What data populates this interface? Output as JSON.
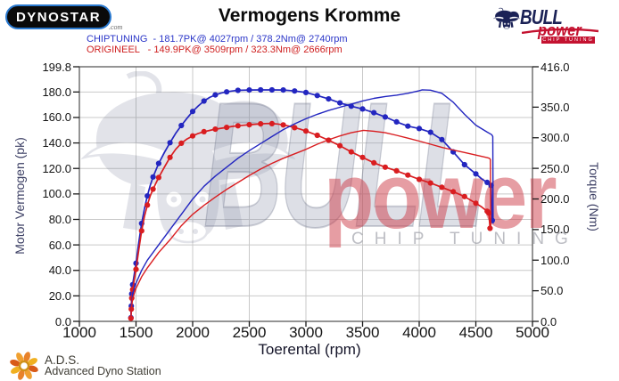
{
  "header": {
    "dynostar": {
      "text": "DYNOSTAR",
      "suffix": ".com"
    },
    "title": "Vermogens Kromme",
    "bullpower_logo": {
      "bull": "BULL",
      "power": "power",
      "chip": "CHIP TUNING"
    }
  },
  "legend": {
    "chiptuning": {
      "label": "CHIPTUNING  - 181.7PK@ 4027rpm / 378.2Nm@ 2740rpm",
      "color": "#2a35c8"
    },
    "origineel": {
      "label": "ORIGINEEL   - 149.9PK@ 3509rpm / 323.3Nm@ 2666rpm",
      "color": "#cf2020"
    }
  },
  "watermark": {
    "bull_text": "BULL",
    "power_text": "power",
    "chip_text": "CHIP TUNING"
  },
  "footer": {
    "ads_abbr": "A.D.S.",
    "ads_name": "Advanced Dyno Station"
  },
  "chart_data": {
    "type": "line",
    "title": "Vermogens Kromme",
    "xlabel": "Toerental (rpm)",
    "ylabel_left": "Motor Vermogen (pk)",
    "ylabel_right": "Torque (Nm)",
    "x_range": [
      1000,
      5000
    ],
    "y_left_range": [
      0,
      199.8
    ],
    "y_right_range": [
      0,
      416
    ],
    "grid": true,
    "legend_position": "top-left",
    "x_ticks": {
      "values": [
        1000,
        1500,
        2000,
        2500,
        3000,
        3500,
        4000,
        4500,
        5000
      ],
      "labels": [
        "1000",
        "1500",
        "2000",
        "2500",
        "3000",
        "3500",
        "4000",
        "4500",
        "5000"
      ]
    },
    "y_left_ticks": {
      "values": [
        0,
        20,
        40,
        60,
        80,
        100,
        120,
        140,
        160,
        180,
        199.8
      ],
      "labels": [
        "0.0",
        "20.0",
        "40.0",
        "60.0",
        "80.0",
        "100.0",
        "120.0",
        "140.0",
        "160.0",
        "180.0",
        "199.8"
      ]
    },
    "y_right_ticks": {
      "values": [
        0,
        50,
        100,
        150,
        200,
        250,
        300,
        350,
        416
      ],
      "labels": [
        "0.0",
        "50.0",
        "100.0",
        "150.0",
        "200.0",
        "250.0",
        "300.0",
        "350.0",
        "416.0"
      ]
    },
    "series": [
      {
        "name": "chiptuning-torque",
        "axis": "right",
        "color": "#2326c0",
        "markers": true,
        "peak_label": "378.2Nm@ 2740rpm",
        "points": [
          [
            1455,
            6
          ],
          [
            1458,
            25
          ],
          [
            1462,
            45
          ],
          [
            1470,
            60
          ],
          [
            1500,
            95
          ],
          [
            1525,
            130
          ],
          [
            1550,
            160
          ],
          [
            1575,
            185
          ],
          [
            1600,
            205
          ],
          [
            1625,
            222
          ],
          [
            1650,
            236
          ],
          [
            1700,
            258
          ],
          [
            1750,
            276
          ],
          [
            1800,
            292
          ],
          [
            1850,
            307
          ],
          [
            1900,
            320
          ],
          [
            1950,
            332
          ],
          [
            2000,
            343
          ],
          [
            2050,
            352
          ],
          [
            2100,
            360
          ],
          [
            2150,
            366
          ],
          [
            2200,
            370
          ],
          [
            2250,
            373
          ],
          [
            2300,
            375
          ],
          [
            2350,
            376.5
          ],
          [
            2400,
            377.5
          ],
          [
            2500,
            378
          ],
          [
            2600,
            378.2
          ],
          [
            2700,
            378.2
          ],
          [
            2800,
            378
          ],
          [
            2900,
            376.5
          ],
          [
            3000,
            374
          ],
          [
            3100,
            369
          ],
          [
            3200,
            363.5
          ],
          [
            3300,
            357
          ],
          [
            3400,
            351.5
          ],
          [
            3500,
            347
          ],
          [
            3600,
            341
          ],
          [
            3700,
            334
          ],
          [
            3800,
            326
          ],
          [
            3900,
            319
          ],
          [
            4000,
            315
          ],
          [
            4100,
            309
          ],
          [
            4200,
            297
          ],
          [
            4300,
            277
          ],
          [
            4400,
            256
          ],
          [
            4500,
            241
          ],
          [
            4550,
            233
          ],
          [
            4600,
            227
          ],
          [
            4635,
            222
          ],
          [
            4645,
            165
          ]
        ]
      },
      {
        "name": "origineel-torque",
        "axis": "right",
        "color": "#d91d20",
        "markers": true,
        "peak_label": "323.3Nm@ 2666rpm",
        "points": [
          [
            1455,
            5
          ],
          [
            1458,
            20
          ],
          [
            1462,
            38
          ],
          [
            1470,
            52
          ],
          [
            1500,
            85
          ],
          [
            1525,
            118
          ],
          [
            1550,
            148
          ],
          [
            1575,
            172
          ],
          [
            1600,
            190
          ],
          [
            1625,
            205
          ],
          [
            1650,
            216
          ],
          [
            1700,
            235
          ],
          [
            1750,
            252
          ],
          [
            1800,
            268
          ],
          [
            1850,
            281
          ],
          [
            1900,
            291
          ],
          [
            1950,
            298
          ],
          [
            2000,
            303
          ],
          [
            2050,
            307
          ],
          [
            2100,
            310
          ],
          [
            2150,
            312
          ],
          [
            2200,
            314
          ],
          [
            2250,
            315.5
          ],
          [
            2300,
            317
          ],
          [
            2350,
            318.5
          ],
          [
            2400,
            319.5
          ],
          [
            2450,
            320.5
          ],
          [
            2500,
            321.3
          ],
          [
            2550,
            322
          ],
          [
            2600,
            322.8
          ],
          [
            2666,
            323.3
          ],
          [
            2700,
            323.1
          ],
          [
            2750,
            322.5
          ],
          [
            2800,
            321
          ],
          [
            2850,
            319
          ],
          [
            2900,
            316.5
          ],
          [
            2950,
            314
          ],
          [
            3000,
            311
          ],
          [
            3100,
            304
          ],
          [
            3200,
            296
          ],
          [
            3300,
            287
          ],
          [
            3400,
            277
          ],
          [
            3500,
            268
          ],
          [
            3600,
            259
          ],
          [
            3700,
            252
          ],
          [
            3800,
            246
          ],
          [
            3900,
            239
          ],
          [
            4000,
            232
          ],
          [
            4100,
            226
          ],
          [
            4200,
            219
          ],
          [
            4300,
            212
          ],
          [
            4400,
            204
          ],
          [
            4500,
            193
          ],
          [
            4550,
            187
          ],
          [
            4600,
            180
          ],
          [
            4615,
            177
          ],
          [
            4625,
            152
          ]
        ]
      },
      {
        "name": "chiptuning-vermogen",
        "axis": "left",
        "color": "#2326c0",
        "markers": false,
        "peak_label": "181.7PK@ 4027rpm",
        "points": [
          [
            1455,
            4
          ],
          [
            1460,
            12
          ],
          [
            1470,
            22
          ],
          [
            1500,
            30
          ],
          [
            1550,
            40
          ],
          [
            1600,
            48
          ],
          [
            1700,
            60
          ],
          [
            1800,
            72
          ],
          [
            1900,
            84
          ],
          [
            2000,
            96
          ],
          [
            2100,
            106
          ],
          [
            2200,
            114
          ],
          [
            2300,
            121
          ],
          [
            2400,
            128
          ],
          [
            2500,
            134
          ],
          [
            2600,
            139.5
          ],
          [
            2700,
            145
          ],
          [
            2800,
            150.5
          ],
          [
            2900,
            155
          ],
          [
            3000,
            159
          ],
          [
            3100,
            162.5
          ],
          [
            3200,
            165.5
          ],
          [
            3300,
            168
          ],
          [
            3400,
            170.5
          ],
          [
            3500,
            173
          ],
          [
            3600,
            175
          ],
          [
            3700,
            176.5
          ],
          [
            3800,
            177.5
          ],
          [
            3900,
            179
          ],
          [
            4000,
            181
          ],
          [
            4027,
            181.7
          ],
          [
            4100,
            181.4
          ],
          [
            4200,
            179
          ],
          [
            4300,
            172
          ],
          [
            4400,
            162.5
          ],
          [
            4500,
            154
          ],
          [
            4600,
            148.5
          ],
          [
            4640,
            146.5
          ],
          [
            4650,
            145
          ],
          [
            4653,
            77
          ]
        ]
      },
      {
        "name": "origineel-vermogen",
        "axis": "left",
        "color": "#d91d20",
        "markers": false,
        "peak_label": "149.9PK@ 3509rpm",
        "points": [
          [
            1455,
            3
          ],
          [
            1460,
            10
          ],
          [
            1470,
            18
          ],
          [
            1500,
            26
          ],
          [
            1550,
            35
          ],
          [
            1600,
            42
          ],
          [
            1700,
            54
          ],
          [
            1800,
            64
          ],
          [
            1900,
            75
          ],
          [
            2000,
            84
          ],
          [
            2100,
            91
          ],
          [
            2200,
            97.5
          ],
          [
            2300,
            103.5
          ],
          [
            2400,
            109
          ],
          [
            2500,
            114.5
          ],
          [
            2600,
            119.5
          ],
          [
            2700,
            124
          ],
          [
            2800,
            128
          ],
          [
            2900,
            131.5
          ],
          [
            3000,
            135
          ],
          [
            3100,
            139
          ],
          [
            3200,
            142.5
          ],
          [
            3300,
            145.5
          ],
          [
            3400,
            148
          ],
          [
            3509,
            149.9
          ],
          [
            3600,
            149.2
          ],
          [
            3700,
            148
          ],
          [
            3800,
            146
          ],
          [
            3900,
            143.8
          ],
          [
            4000,
            141.5
          ],
          [
            4100,
            139
          ],
          [
            4200,
            136.5
          ],
          [
            4300,
            134.5
          ],
          [
            4400,
            132.5
          ],
          [
            4500,
            130.5
          ],
          [
            4600,
            128.5
          ],
          [
            4620,
            128
          ],
          [
            4628,
            127
          ],
          [
            4632,
            72
          ]
        ]
      }
    ]
  }
}
